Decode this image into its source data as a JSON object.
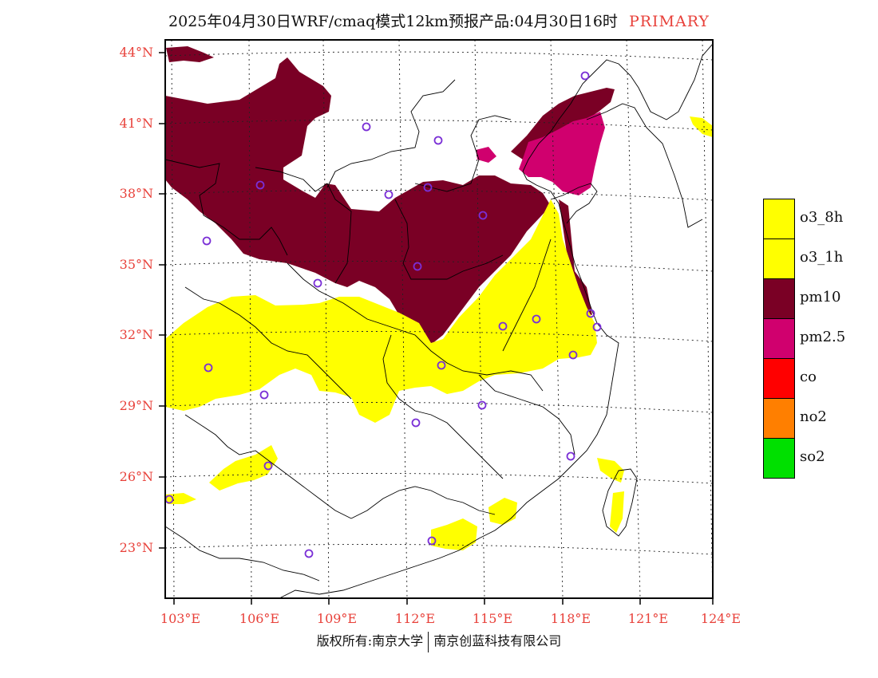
{
  "title": {
    "main": "2025年04月30日WRF/cmaq模式12km预报产品:04月30日16时",
    "variant": "PRIMARY"
  },
  "axes": {
    "lat_labels": [
      "44°N",
      "41°N",
      "38°N",
      "35°N",
      "32°N",
      "29°N",
      "26°N",
      "23°N"
    ],
    "lon_labels": [
      "103°E",
      "106°E",
      "109°E",
      "112°E",
      "115°E",
      "118°E",
      "121°E",
      "124°E"
    ]
  },
  "legend": [
    {
      "label": "o3_8h",
      "color": "#ffff00"
    },
    {
      "label": "o3_1h",
      "color": "#ffff00"
    },
    {
      "label": "pm10",
      "color": "#7a0025"
    },
    {
      "label": "pm2.5",
      "color": "#d0006e"
    },
    {
      "label": "co",
      "color": "#ff0000"
    },
    {
      "label": "no2",
      "color": "#ff7f00"
    },
    {
      "label": "so2",
      "color": "#00e000"
    }
  ],
  "copyright": {
    "left": "版权所有:南京大学",
    "right": "南京创蓝科技有限公司"
  },
  "colors": {
    "pm10": "#7a0025",
    "pm25": "#d0006e",
    "o3": "#ffff00",
    "station": "#7a2fd6",
    "label": "#e8413a"
  }
}
